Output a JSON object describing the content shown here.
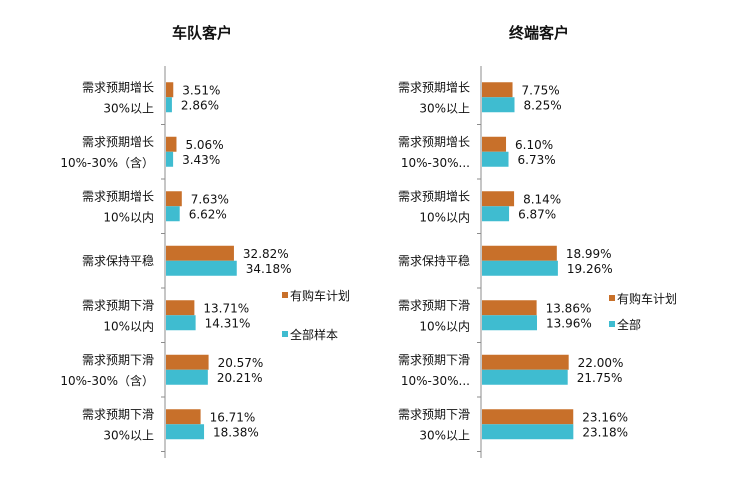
{
  "colors": {
    "series1": "#c8702a",
    "series2": "#3fbcd0",
    "axis": "#8c8c8c"
  },
  "chart_data": [
    {
      "type": "bar",
      "orientation": "horizontal",
      "title": "车队客户",
      "categories": [
        [
          "需求预期增长",
          "30%以上"
        ],
        [
          "需求预期增长",
          "10%-30%（含）"
        ],
        [
          "需求预期增长",
          "10%以内"
        ],
        [
          "需求保持平稳"
        ],
        [
          "需求预期下滑",
          "10%以内"
        ],
        [
          "需求预期下滑",
          "10%-30%（含）"
        ],
        [
          "需求预期下滑",
          "30%以上"
        ]
      ],
      "series": [
        {
          "name": "有购车计划",
          "values": [
            3.51,
            5.06,
            7.63,
            32.82,
            13.71,
            20.57,
            16.71
          ],
          "labels": [
            "3.51%",
            "5.06%",
            "7.63%",
            "32.82%",
            "13.71%",
            "20.57%",
            "16.71%"
          ]
        },
        {
          "name": "全部样本",
          "values": [
            2.86,
            3.43,
            6.62,
            34.18,
            14.31,
            20.21,
            18.38
          ],
          "labels": [
            "2.86%",
            "3.43%",
            "6.62%",
            "34.18%",
            "14.31%",
            "20.21%",
            "18.38%"
          ]
        }
      ],
      "xlim": [
        0,
        100
      ],
      "legend_position": "right"
    },
    {
      "type": "bar",
      "orientation": "horizontal",
      "title": "终端客户",
      "categories": [
        [
          "需求预期增长",
          "30%以上"
        ],
        [
          "需求预期增长",
          "10%-30%..."
        ],
        [
          "需求预期增长",
          "10%以内"
        ],
        [
          "需求保持平稳"
        ],
        [
          "需求预期下滑",
          "10%以内"
        ],
        [
          "需求预期下滑",
          "10%-30%..."
        ],
        [
          "需求预期下滑",
          "30%以上"
        ]
      ],
      "series": [
        {
          "name": "有购车计划",
          "values": [
            7.75,
            6.1,
            8.14,
            18.99,
            13.86,
            22.0,
            23.16
          ],
          "labels": [
            "7.75%",
            "6.10%",
            "8.14%",
            "18.99%",
            "13.86%",
            "22.00%",
            "23.16%"
          ]
        },
        {
          "name": "全部",
          "values": [
            8.25,
            6.73,
            6.87,
            19.26,
            13.96,
            21.75,
            23.18
          ],
          "labels": [
            "8.25%",
            "6.73%",
            "6.87%",
            "19.26%",
            "13.96%",
            "21.75%",
            "23.18%"
          ]
        }
      ],
      "xlim": [
        0,
        50
      ],
      "legend_position": "right"
    }
  ]
}
